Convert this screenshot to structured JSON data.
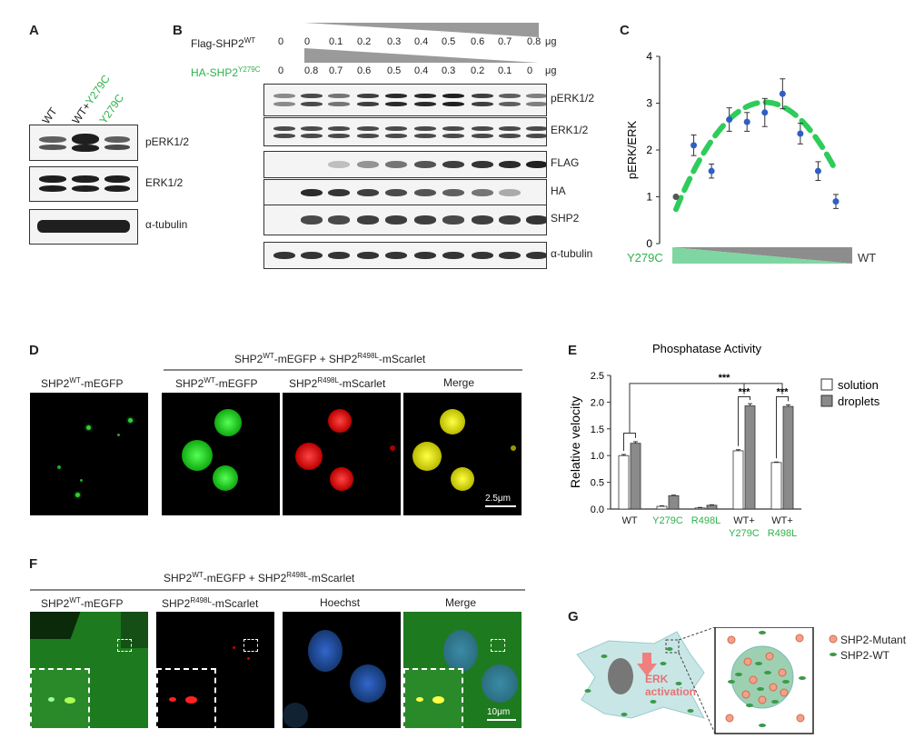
{
  "colors": {
    "green": "#2eb24a",
    "blue": "#2f5fc4",
    "grey": "#8a8a8a",
    "dash": "#2ecc5a"
  },
  "panels": {
    "A": "A",
    "B": "B",
    "C": "C",
    "D": "D",
    "E": "E",
    "F": "F",
    "G": "G"
  },
  "A": {
    "lanes": [
      "WT",
      "WT+",
      "Y279C",
      "Y279C"
    ],
    "rows": [
      "pERK1/2",
      "ERK1/2",
      "α-tubulin"
    ]
  },
  "B": {
    "flag_label_main": "Flag-SHP2",
    "flag_label_sup": "WT",
    "ha_label_main": "HA-SHP2",
    "ha_label_sup": "Y279C",
    "flag_values": [
      "0",
      "0",
      "0.1",
      "0.2",
      "0.3",
      "0.4",
      "0.5",
      "0.6",
      "0.7",
      "0.8"
    ],
    "ha_values": [
      "0",
      "0.8",
      "0.7",
      "0.6",
      "0.5",
      "0.4",
      "0.3",
      "0.2",
      "0.1",
      "0"
    ],
    "unit": "μg",
    "rows": [
      "pERK1/2",
      "ERK1/2",
      "FLAG",
      "HA",
      "SHP2",
      "α-tubulin"
    ]
  },
  "chart_data": [
    {
      "type": "scatter",
      "panel": "C",
      "ylabel": "pERK/ERK",
      "xlabel_left": "Y279C",
      "xlabel_right": "WT",
      "ylim": [
        0,
        4
      ],
      "yticks": [
        "0",
        "1",
        "2",
        "3",
        "4"
      ],
      "x": [
        1,
        2,
        3,
        4,
        5,
        6,
        7,
        8,
        9,
        10
      ],
      "y": [
        1.0,
        2.1,
        1.55,
        2.65,
        2.6,
        2.8,
        3.2,
        2.35,
        1.55,
        0.9
      ],
      "err": [
        0,
        0.22,
        0.15,
        0.25,
        0.2,
        0.3,
        0.32,
        0.22,
        0.2,
        0.15
      ],
      "fit": "dashed quadratic fit"
    },
    {
      "type": "bar",
      "panel": "E",
      "title": "Phosphatase Activity",
      "ylabel": "Relative velocity",
      "ylim": [
        0,
        2.5
      ],
      "yticks": [
        "0.0",
        "0.5",
        "1.0",
        "1.5",
        "2.0",
        "2.5"
      ],
      "categories": [
        "WT",
        "Y279C",
        "R498L",
        "WT+ Y279C",
        "WT+ R498L"
      ],
      "series": [
        {
          "name": "solution",
          "values": [
            1.0,
            0.05,
            0.02,
            1.09,
            0.87
          ],
          "err": [
            0.02,
            0.01,
            0.01,
            0.02,
            0.01
          ]
        },
        {
          "name": "droplets",
          "values": [
            1.23,
            0.25,
            0.07,
            1.93,
            1.92
          ],
          "err": [
            0.03,
            0.01,
            0.01,
            0.04,
            0.03
          ]
        }
      ],
      "significance": [
        "***",
        "***",
        "***"
      ]
    }
  ],
  "E": {
    "cat_lines": [
      [
        "WT",
        ""
      ],
      [
        "Y279C",
        ""
      ],
      [
        "R498L",
        ""
      ],
      [
        "WT+",
        "Y279C"
      ],
      [
        "WT+",
        "R498L"
      ]
    ]
  },
  "D": {
    "single_main": "SHP2",
    "single_sup": "WT",
    "single_suf": "-mEGFP",
    "header_a": "SHP2",
    "header_a_sup": "WT",
    "header_b": "-mEGFP + SHP2",
    "header_b_sup": "R498L",
    "header_c": "-mScarlet",
    "col1_main": "SHP2",
    "col1_sup": "WT",
    "col1_suf": "-mEGFP",
    "col2_main": "SHP2",
    "col2_sup": "R498L",
    "col2_suf": "-mScarlet",
    "col3": "Merge",
    "scale": "2.5μm"
  },
  "F": {
    "header_a": "SHP2",
    "header_a_sup": "WT",
    "header_b": "-mEGFP + SHP2",
    "header_b_sup": "R498L",
    "header_c": "-mScarlet",
    "col1_main": "SHP2",
    "col1_sup": "WT",
    "col1_suf": "-mEGFP",
    "col2_main": "SHP2",
    "col2_sup": "R498L",
    "col2_suf": "-mScarlet",
    "col3": "Hoechst",
    "col4": "Merge",
    "scale": "10μm"
  },
  "G": {
    "erk1": "ERK",
    "erk2": "activation",
    "legend": [
      "SHP2-Mutant",
      "SHP2-WT"
    ]
  }
}
